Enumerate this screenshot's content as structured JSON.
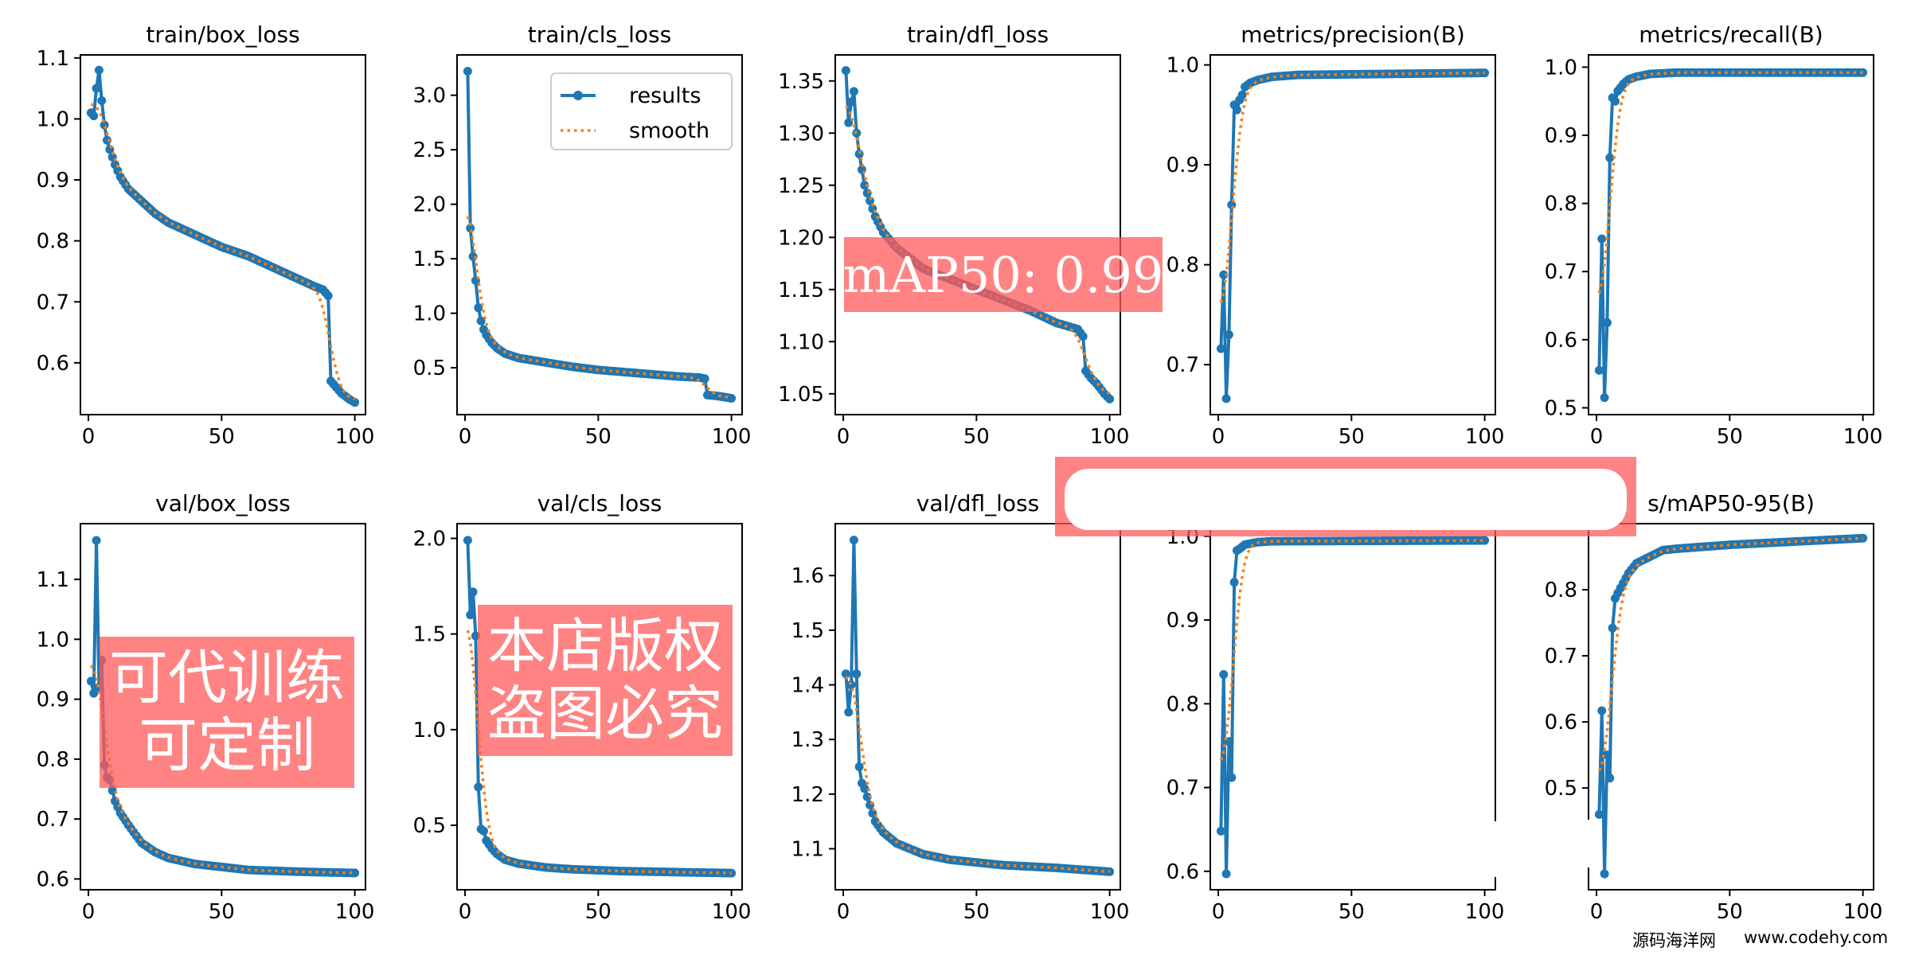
{
  "colors": {
    "results": "#1f77b4",
    "smooth": "#ff7f0e",
    "watermark": "#ff5a5a"
  },
  "legend": {
    "results": "results",
    "smooth": "smooth"
  },
  "watermarks": {
    "map_label": "mAP50:  0.99",
    "copyright": "本店版权盗图必究",
    "custom_training": "可代训练可定制",
    "site_name": "源码海洋网",
    "site_url": "www.codehy.com"
  },
  "chart_data": [
    {
      "type": "line",
      "title": "train/box_loss",
      "xlim": [
        -3,
        104
      ],
      "ylim": [
        0.515,
        1.105
      ],
      "xticks": [
        "0",
        "50",
        "100"
      ],
      "yticks": [
        "0.6",
        "0.7",
        "0.8",
        "0.9",
        "1.0",
        "1.1"
      ],
      "x": [
        1,
        2,
        3,
        4,
        5,
        6,
        7,
        8,
        10,
        12,
        15,
        20,
        25,
        30,
        40,
        50,
        60,
        70,
        80,
        85,
        88,
        90,
        91,
        93,
        95,
        98,
        100
      ],
      "y": [
        1.01,
        1.005,
        1.05,
        1.08,
        1.03,
        0.99,
        0.965,
        0.95,
        0.925,
        0.905,
        0.885,
        0.865,
        0.845,
        0.83,
        0.81,
        0.79,
        0.775,
        0.755,
        0.735,
        0.725,
        0.72,
        0.71,
        0.57,
        0.56,
        0.55,
        0.54,
        0.535
      ]
    },
    {
      "type": "line",
      "title": "train/cls_loss",
      "xlim": [
        -3,
        104
      ],
      "ylim": [
        0.07,
        3.37
      ],
      "legend": "top-right",
      "xticks": [
        "0",
        "50",
        "100"
      ],
      "yticks": [
        "0.5",
        "1.0",
        "1.5",
        "2.0",
        "2.5",
        "3.0"
      ],
      "x": [
        1,
        2,
        3,
        4,
        5,
        6,
        7,
        8,
        10,
        12,
        15,
        20,
        30,
        40,
        50,
        60,
        70,
        80,
        88,
        90,
        91,
        95,
        100
      ],
      "y": [
        3.22,
        1.78,
        1.52,
        1.3,
        1.05,
        0.93,
        0.85,
        0.8,
        0.73,
        0.68,
        0.63,
        0.59,
        0.55,
        0.51,
        0.48,
        0.46,
        0.44,
        0.42,
        0.41,
        0.4,
        0.25,
        0.24,
        0.22
      ]
    },
    {
      "type": "line",
      "title": "train/dfl_loss",
      "xlim": [
        -3,
        104
      ],
      "ylim": [
        1.03,
        1.375
      ],
      "xticks": [
        "0",
        "50",
        "100"
      ],
      "yticks": [
        "1.05",
        "1.10",
        "1.15",
        "1.20",
        "1.25",
        "1.30",
        "1.35"
      ],
      "x": [
        1,
        2,
        3,
        4,
        5,
        6,
        7,
        8,
        10,
        12,
        15,
        20,
        25,
        30,
        40,
        50,
        60,
        70,
        80,
        88,
        90,
        91,
        93,
        95,
        98,
        100
      ],
      "y": [
        1.36,
        1.31,
        1.33,
        1.34,
        1.3,
        1.28,
        1.265,
        1.25,
        1.235,
        1.22,
        1.205,
        1.19,
        1.18,
        1.17,
        1.16,
        1.15,
        1.14,
        1.13,
        1.118,
        1.112,
        1.105,
        1.072,
        1.065,
        1.06,
        1.05,
        1.045
      ]
    },
    {
      "type": "line",
      "title": "metrics/precision(B)",
      "xlim": [
        -3,
        104
      ],
      "ylim": [
        0.65,
        1.01
      ],
      "xticks": [
        "0",
        "50",
        "100"
      ],
      "yticks": [
        "0.7",
        "0.8",
        "0.9",
        "1.0"
      ],
      "x": [
        1,
        2,
        3,
        4,
        5,
        6,
        7,
        8,
        9,
        10,
        12,
        15,
        20,
        30,
        100
      ],
      "y": [
        0.716,
        0.79,
        0.666,
        0.73,
        0.86,
        0.96,
        0.955,
        0.965,
        0.97,
        0.978,
        0.982,
        0.985,
        0.988,
        0.99,
        0.992
      ]
    },
    {
      "type": "line",
      "title": "metrics/recall(B)",
      "xlim": [
        -3,
        104
      ],
      "ylim": [
        0.49,
        1.018
      ],
      "xticks": [
        "0",
        "50",
        "100"
      ],
      "yticks": [
        "0.5",
        "0.6",
        "0.7",
        "0.8",
        "0.9",
        "1.0"
      ],
      "x": [
        1,
        2,
        3,
        4,
        5,
        6,
        7,
        8,
        10,
        12,
        15,
        20,
        30,
        100
      ],
      "y": [
        0.555,
        0.748,
        0.515,
        0.625,
        0.867,
        0.955,
        0.95,
        0.965,
        0.975,
        0.982,
        0.986,
        0.99,
        0.992,
        0.992
      ]
    },
    {
      "type": "line",
      "title": "val/box_loss",
      "xlim": [
        -3,
        104
      ],
      "ylim": [
        0.582,
        1.193
      ],
      "xticks": [
        "0",
        "50",
        "100"
      ],
      "yticks": [
        "0.6",
        "0.7",
        "0.8",
        "0.9",
        "1.0",
        "1.1"
      ],
      "x": [
        1,
        2,
        3,
        4,
        5,
        6,
        7,
        8,
        10,
        12,
        15,
        20,
        25,
        30,
        40,
        50,
        60,
        80,
        100
      ],
      "y": [
        0.93,
        0.91,
        1.165,
        0.92,
        0.965,
        0.79,
        0.77,
        0.765,
        0.73,
        0.71,
        0.69,
        0.66,
        0.645,
        0.635,
        0.625,
        0.62,
        0.615,
        0.612,
        0.61
      ]
    },
    {
      "type": "line",
      "title": "val/cls_loss",
      "xlim": [
        -3,
        104
      ],
      "ylim": [
        0.163,
        2.077
      ],
      "xticks": [
        "0",
        "50",
        "100"
      ],
      "yticks": [
        "0.5",
        "1.0",
        "1.5",
        "2.0"
      ],
      "x": [
        1,
        2,
        3,
        4,
        5,
        6,
        7,
        8,
        10,
        12,
        15,
        20,
        30,
        40,
        50,
        60,
        80,
        100
      ],
      "y": [
        1.99,
        1.6,
        1.72,
        1.49,
        0.7,
        0.48,
        0.47,
        0.42,
        0.38,
        0.35,
        0.32,
        0.3,
        0.28,
        0.27,
        0.265,
        0.26,
        0.255,
        0.25
      ]
    },
    {
      "type": "line",
      "title": "val/dfl_loss",
      "xlim": [
        -3,
        104
      ],
      "ylim": [
        1.025,
        1.695
      ],
      "xticks": [
        "0",
        "50",
        "100"
      ],
      "yticks": [
        "1.1",
        "1.2",
        "1.3",
        "1.4",
        "1.5",
        "1.6"
      ],
      "x": [
        1,
        2,
        3,
        4,
        5,
        6,
        7,
        8,
        10,
        12,
        15,
        20,
        25,
        30,
        40,
        50,
        60,
        80,
        100
      ],
      "y": [
        1.42,
        1.35,
        1.4,
        1.665,
        1.42,
        1.25,
        1.22,
        1.21,
        1.18,
        1.15,
        1.13,
        1.11,
        1.1,
        1.09,
        1.08,
        1.075,
        1.07,
        1.065,
        1.058
      ]
    },
    {
      "type": "line",
      "title": "",
      "xlim": [
        -3,
        104
      ],
      "ylim": [
        0.578,
        1.015
      ],
      "xticks": [
        "0",
        "50",
        "100"
      ],
      "yticks": [
        "0.6",
        "0.7",
        "0.8",
        "0.9",
        "1.0"
      ],
      "x": [
        1,
        2,
        3,
        4,
        5,
        6,
        7,
        8,
        10,
        15,
        20,
        100
      ],
      "y": [
        0.648,
        0.835,
        0.597,
        0.755,
        0.712,
        0.945,
        0.983,
        0.985,
        0.99,
        0.993,
        0.994,
        0.995
      ]
    },
    {
      "type": "line",
      "title": "s/mAP50-95(B)",
      "xlim": [
        -3,
        104
      ],
      "ylim": [
        0.346,
        0.9
      ],
      "xticks": [
        "0",
        "50",
        "100"
      ],
      "yticks": [
        "0.5",
        "0.6",
        "0.7",
        "0.8"
      ],
      "x": [
        1,
        2,
        3,
        4,
        5,
        6,
        7,
        8,
        10,
        12,
        15,
        20,
        25,
        30,
        40,
        50,
        60,
        70,
        80,
        90,
        100
      ],
      "y": [
        0.46,
        0.617,
        0.37,
        0.55,
        0.515,
        0.742,
        0.787,
        0.795,
        0.81,
        0.825,
        0.84,
        0.85,
        0.86,
        0.862,
        0.865,
        0.868,
        0.87,
        0.872,
        0.874,
        0.876,
        0.878
      ]
    }
  ]
}
